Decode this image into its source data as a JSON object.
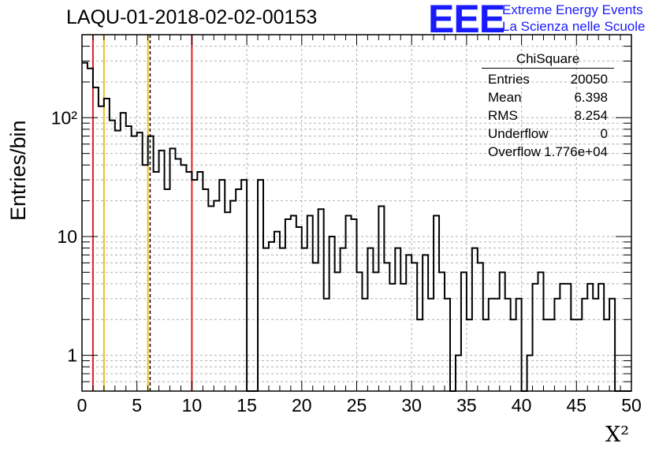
{
  "header": {
    "title": "LAQU-01-2018-02-02-00153",
    "brand_logo": "EEE",
    "brand_line1": "Extreme Energy Events",
    "brand_line2": "La Scienza nelle Scuole"
  },
  "stats_box": {
    "name": "ChiSquare",
    "rows": [
      {
        "label": "Entries",
        "value": "20050"
      },
      {
        "label": "Mean",
        "value": "6.398"
      },
      {
        "label": "RMS",
        "value": "8.254"
      },
      {
        "label": "Underflow",
        "value": "0"
      },
      {
        "label": "Overflow",
        "value": "1.776e+04"
      }
    ]
  },
  "chart_data": {
    "type": "histogram",
    "xlabel": "X²",
    "ylabel": "Entries/bin",
    "xlim": [
      0,
      50
    ],
    "ylim": [
      0.5,
      500
    ],
    "yscale": "log",
    "grid": true,
    "bin_width": 0.5,
    "x_ticks": [
      "0",
      "5",
      "10",
      "15",
      "20",
      "25",
      "30",
      "35",
      "40",
      "45",
      "50"
    ],
    "y_ticks": [
      {
        "value": 1,
        "label": "1"
      },
      {
        "value": 10,
        "label": "10"
      },
      {
        "value": 100,
        "label": "10²"
      }
    ],
    "counts": [
      290,
      260,
      180,
      125,
      145,
      95,
      78,
      110,
      85,
      70,
      75,
      40,
      70,
      35,
      53,
      25,
      55,
      45,
      40,
      35,
      30,
      35,
      25,
      18,
      20,
      30,
      16,
      20,
      25,
      30,
      0,
      0,
      30,
      8,
      9,
      11,
      8,
      14,
      15,
      12,
      8,
      15,
      6,
      17,
      3,
      10,
      5,
      8,
      15,
      14,
      5,
      3,
      8,
      5,
      18,
      6,
      4,
      8,
      4,
      7,
      6,
      2,
      7,
      3,
      15,
      5,
      3,
      0,
      1,
      5,
      2,
      8,
      6,
      2,
      3,
      3,
      5,
      3,
      2,
      3,
      0,
      1,
      4,
      5,
      2,
      2,
      3,
      4,
      4,
      2,
      2,
      3,
      4,
      3,
      4,
      2,
      3,
      0,
      0,
      0
    ],
    "vertical_lines": [
      {
        "x": 1,
        "color": "#e02020",
        "style": "solid"
      },
      {
        "x": 2,
        "color": "#f0c020",
        "style": "solid"
      },
      {
        "x": 6,
        "color": "#f0c020",
        "style": "solid"
      },
      {
        "x": 6.2,
        "color": "#000000",
        "style": "dashed"
      },
      {
        "x": 10,
        "color": "#e02020",
        "style": "solid"
      }
    ]
  }
}
